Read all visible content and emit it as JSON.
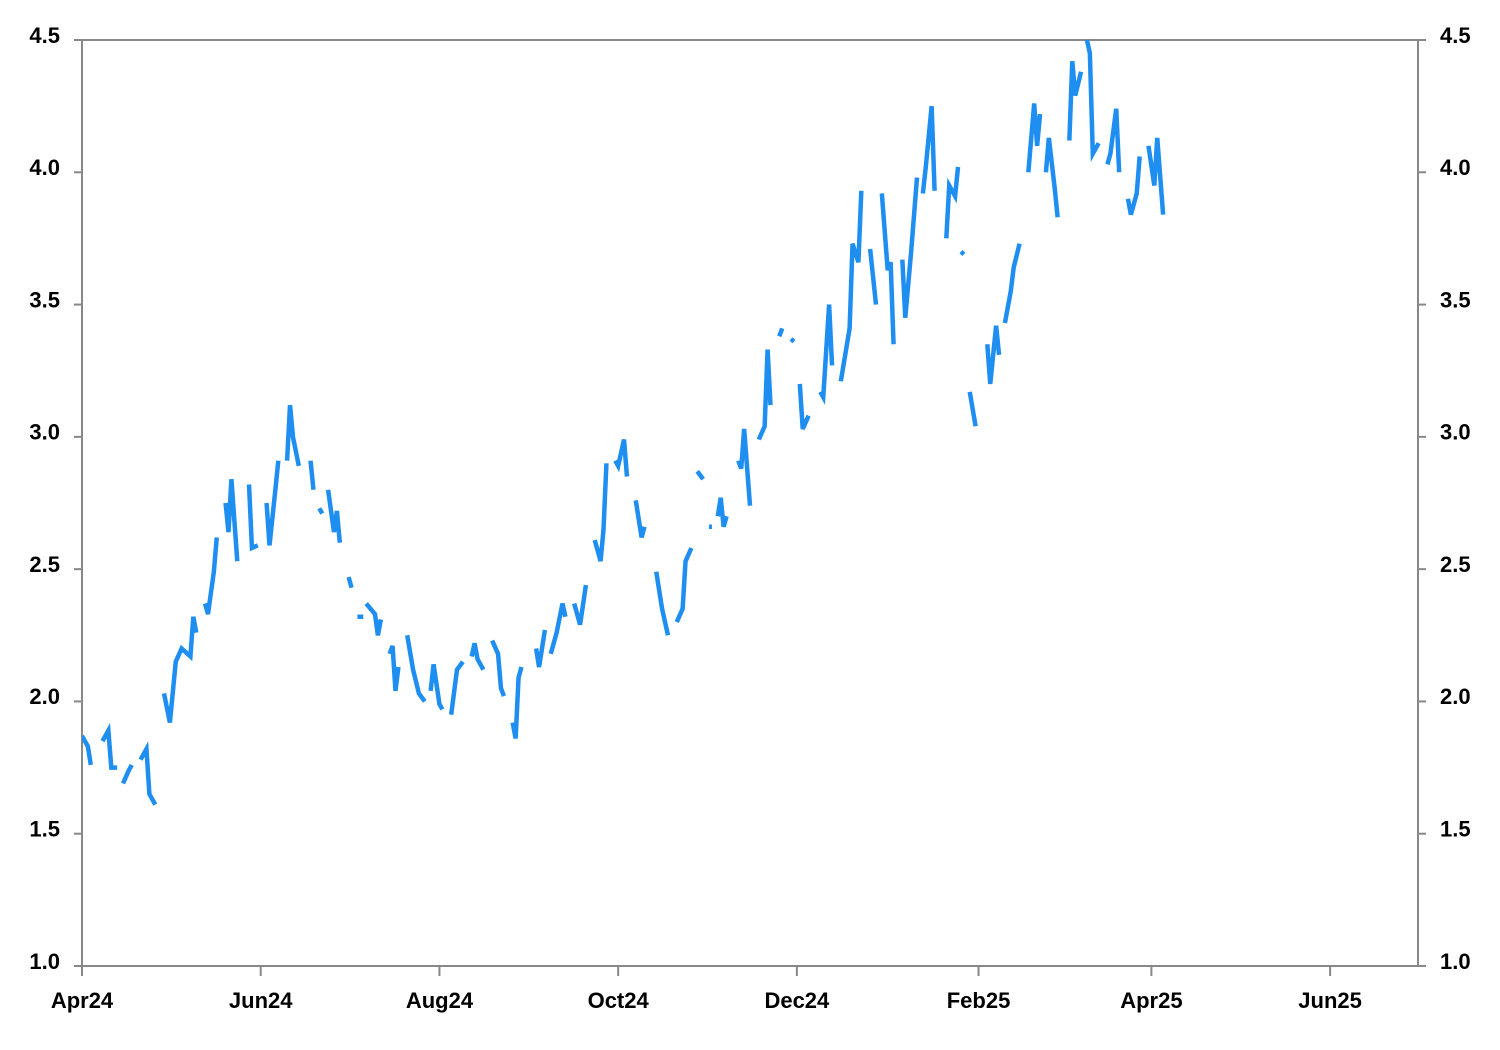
{
  "chart_data": {
    "type": "line",
    "x": [
      0,
      2,
      3,
      4,
      7,
      9,
      10,
      12,
      13,
      14,
      16,
      17,
      18,
      20,
      22,
      23,
      25,
      26,
      28,
      30,
      32,
      34,
      37,
      38,
      39,
      40,
      42,
      43,
      45,
      46,
      47,
      49,
      50,
      51,
      53,
      55,
      57,
      58,
      60,
      61,
      63,
      64,
      66,
      67,
      68,
      70,
      71,
      72,
      74,
      76,
      78,
      79,
      80,
      81,
      82,
      83,
      84,
      86,
      87,
      88,
      89,
      91,
      92,
      93,
      94,
      96,
      96.5,
      97,
      100,
      101,
      102,
      103,
      105,
      106,
      107,
      108,
      109,
      111,
      113,
      115,
      117,
      118,
      119,
      120,
      122,
      123,
      124,
      126,
      128,
      130,
      131,
      133,
      134,
      135,
      137,
      138,
      140,
      142,
      143,
      144,
      145,
      147,
      148,
      149,
      150,
      152,
      155,
      156,
      158,
      159,
      160,
      162,
      164,
      165,
      166,
      168,
      170,
      172,
      173,
      175,
      177,
      178,
      179,
      180,
      182,
      183,
      185,
      186,
      187,
      189,
      190,
      191,
      192,
      194,
      196,
      198,
      200,
      201,
      203,
      205,
      206,
      208,
      209,
      210,
      212,
      213,
      214,
      215,
      216,
      217,
      218,
      219,
      220,
      222,
      224,
      225,
      226,
      228,
      229,
      231,
      233,
      234,
      235,
      236,
      238,
      239,
      240,
      242,
      243,
      244,
      245,
      246,
      248,
      250,
      252,
      253,
      255,
      256,
      257,
      259,
      262,
      263,
      265,
      266,
      267,
      269,
      271,
      272,
      273,
      275,
      276,
      277,
      278,
      280,
      281,
      283,
      285,
      286,
      287,
      288,
      290,
      291,
      293,
      295,
      296,
      298,
      299,
      299.5,
      300,
      301,
      302,
      303,
      305,
      307,
      309,
      310,
      312,
      313,
      314,
      315,
      317,
      318,
      320,
      321,
      323,
      325,
      326,
      327,
      328,
      329,
      330,
      332,
      333,
      335,
      337,
      338,
      339,
      341,
      342,
      343,
      344,
      345,
      347,
      348,
      350,
      351,
      353,
      354,
      355,
      357,
      358,
      360,
      361,
      362,
      364,
      366,
      367,
      369
    ],
    "series": [
      {
        "color": "#1f8ef1",
        "values": [
          1.87,
          1.83,
          1.76,
          null,
          1.85,
          1.89,
          1.75,
          1.75,
          null,
          1.69,
          1.74,
          1.76,
          null,
          1.78,
          1.82,
          1.65,
          1.61,
          null,
          2.03,
          1.92,
          2.15,
          2.2,
          2.17,
          2.32,
          2.26,
          null,
          2.37,
          2.33,
          2.49,
          2.62,
          null,
          2.75,
          2.64,
          2.84,
          2.53,
          null,
          2.82,
          2.58,
          2.59,
          null,
          2.75,
          2.59,
          2.8,
          2.91,
          null,
          2.91,
          3.12,
          3.0,
          2.89,
          null,
          2.91,
          2.8,
          null,
          2.73,
          2.71,
          null,
          2.8,
          2.64,
          2.72,
          2.6,
          null,
          2.47,
          2.43,
          null,
          2.32,
          2.32,
          null,
          2.37,
          2.33,
          2.25,
          2.31,
          null,
          2.18,
          2.21,
          2.04,
          2.13,
          null,
          2.25,
          2.12,
          2.03,
          2.0,
          null,
          2.04,
          2.14,
          1.99,
          1.97,
          null,
          1.95,
          2.12,
          2.15,
          null,
          2.17,
          2.22,
          2.16,
          2.12,
          null,
          2.23,
          2.18,
          2.05,
          2.02,
          null,
          1.92,
          1.86,
          2.09,
          2.13,
          null,
          2.2,
          2.13,
          2.27,
          null,
          2.18,
          2.26,
          2.37,
          2.32,
          null,
          2.37,
          2.29,
          2.44,
          null,
          2.61,
          2.53,
          2.65,
          2.9,
          null,
          2.91,
          2.89,
          2.99,
          2.85,
          null,
          2.76,
          2.69,
          2.62,
          2.66,
          null,
          2.49,
          2.35,
          2.25,
          null,
          2.3,
          2.35,
          2.53,
          2.58,
          null,
          2.87,
          2.84,
          null,
          2.66,
          2.66,
          null,
          2.7,
          2.77,
          2.66,
          2.7,
          null,
          2.91,
          2.88,
          3.03,
          2.74,
          null,
          2.99,
          3.04,
          3.33,
          3.12,
          null,
          3.38,
          3.41,
          null,
          3.37,
          3.36,
          null,
          3.2,
          3.03,
          3.08,
          null,
          3.17,
          3.15,
          3.5,
          3.27,
          null,
          3.21,
          3.41,
          3.73,
          3.66,
          3.93,
          null,
          3.71,
          3.5,
          null,
          3.92,
          3.63,
          3.66,
          3.35,
          null,
          3.67,
          3.45,
          3.7,
          3.98,
          null,
          3.92,
          4.02,
          4.25,
          3.93,
          null,
          3.75,
          3.95,
          3.91,
          4.02,
          null,
          3.7,
          3.69,
          null,
          3.17,
          3.04,
          null,
          3.35,
          3.2,
          3.42,
          3.31,
          null,
          3.43,
          3.55,
          3.64,
          3.73,
          null,
          4.0,
          4.26,
          4.1,
          4.22,
          null,
          4.0,
          4.13,
          3.94,
          3.83,
          null,
          4.12,
          4.42,
          4.29,
          4.38,
          null,
          4.5,
          4.45,
          4.07,
          4.11,
          null,
          4.03,
          4.07,
          4.24,
          4.0,
          null,
          3.9,
          3.84,
          3.92,
          4.06,
          null,
          4.1,
          3.95,
          4.13,
          3.84
        ]
      }
    ],
    "xlim": [
      0,
      456
    ],
    "xticks": [
      {
        "value": 0,
        "label": "Apr24"
      },
      {
        "value": 61,
        "label": "Jun24"
      },
      {
        "value": 122,
        "label": "Aug24"
      },
      {
        "value": 183,
        "label": "Oct24"
      },
      {
        "value": 244,
        "label": "Dec24"
      },
      {
        "value": 306,
        "label": "Feb25"
      },
      {
        "value": 365,
        "label": "Apr25"
      },
      {
        "value": 426,
        "label": "Jun25"
      }
    ],
    "ylim": [
      1,
      4.5
    ],
    "yticks": [
      {
        "value": 1,
        "label": "1.0"
      },
      {
        "value": 1.5,
        "label": "1.5"
      },
      {
        "value": 2,
        "label": "2.0"
      },
      {
        "value": 2.5,
        "label": "2.5"
      },
      {
        "value": 3,
        "label": "3.0"
      },
      {
        "value": 3.5,
        "label": "3.5"
      },
      {
        "value": 4,
        "label": "4.0"
      },
      {
        "value": 4.5,
        "label": "4.5"
      }
    ],
    "y2lim": [
      1,
      4.5
    ],
    "y2ticks": [
      {
        "value": 1,
        "label": "1.0"
      },
      {
        "value": 1.5,
        "label": "1.5"
      },
      {
        "value": 2,
        "label": "2.0"
      },
      {
        "value": 2.5,
        "label": "2.5"
      },
      {
        "value": 3,
        "label": "3.0"
      },
      {
        "value": 3.5,
        "label": "3.5"
      },
      {
        "value": 4,
        "label": "4.0"
      },
      {
        "value": 4.5,
        "label": "4.5"
      }
    ]
  }
}
